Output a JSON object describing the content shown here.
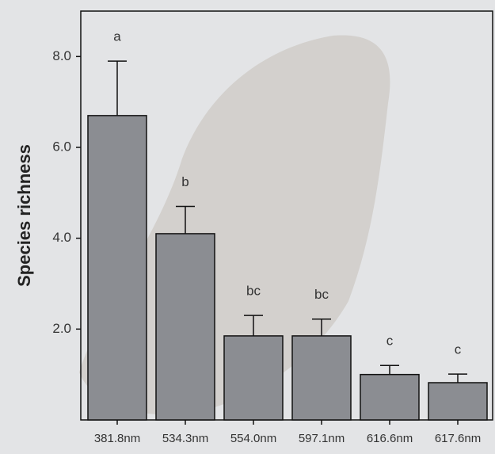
{
  "chart_data": {
    "type": "bar",
    "y_label": "Species richness",
    "categories": [
      "381.8nm",
      "534.3nm",
      "554.0nm",
      "597.1nm",
      "616.6nm",
      "617.6nm"
    ],
    "values": [
      6.7,
      4.1,
      1.85,
      1.85,
      1.0,
      0.82
    ],
    "errors": [
      1.2,
      0.6,
      0.45,
      0.37,
      0.2,
      0.19
    ],
    "group_letters": [
      "a",
      "b",
      "bc",
      "bc",
      "c",
      "c"
    ],
    "color": "#8b8d92",
    "ylim": [
      0,
      9
    ],
    "yticks": [
      {
        "value": 2,
        "label": "2.0"
      },
      {
        "value": 4,
        "label": "4.0"
      },
      {
        "value": 6,
        "label": "6.0"
      },
      {
        "value": 8,
        "label": "8.0"
      }
    ]
  }
}
